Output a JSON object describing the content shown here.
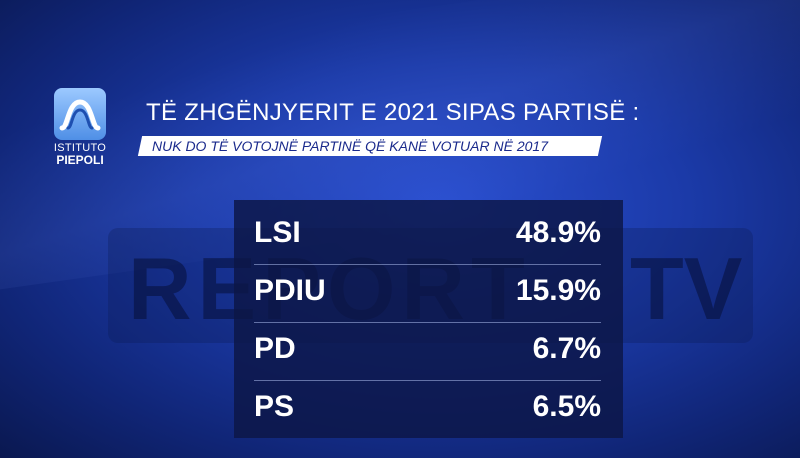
{
  "header": {
    "title": "TË ZHGËNJYERIT E 2021 SIPAS PARTISË :",
    "subtitle": "NUK DO TË VOTOJNË PARTINË QË KANË VOTUAR NË 2017"
  },
  "logo": {
    "line1": "ISTITUTO",
    "line2": "PIEPOLI",
    "icon": "piepoli-logo-icon"
  },
  "watermark": {
    "text": "REPORT",
    "suffix": "TV"
  },
  "chart_data": {
    "type": "table",
    "title": "TË ZHGËNJYERIT E 2021 SIPAS PARTISË :",
    "subtitle": "NUK DO TË VOTOJNË PARTINË QË KANË VOTUAR NË 2017",
    "rows": [
      {
        "party": "LSI",
        "value": 48.9,
        "label": "48.9%"
      },
      {
        "party": "PDIU",
        "value": 15.9,
        "label": "15.9%"
      },
      {
        "party": "PD",
        "value": 6.7,
        "label": "6.7%"
      },
      {
        "party": "PS",
        "value": 6.5,
        "label": "6.5%"
      }
    ]
  }
}
